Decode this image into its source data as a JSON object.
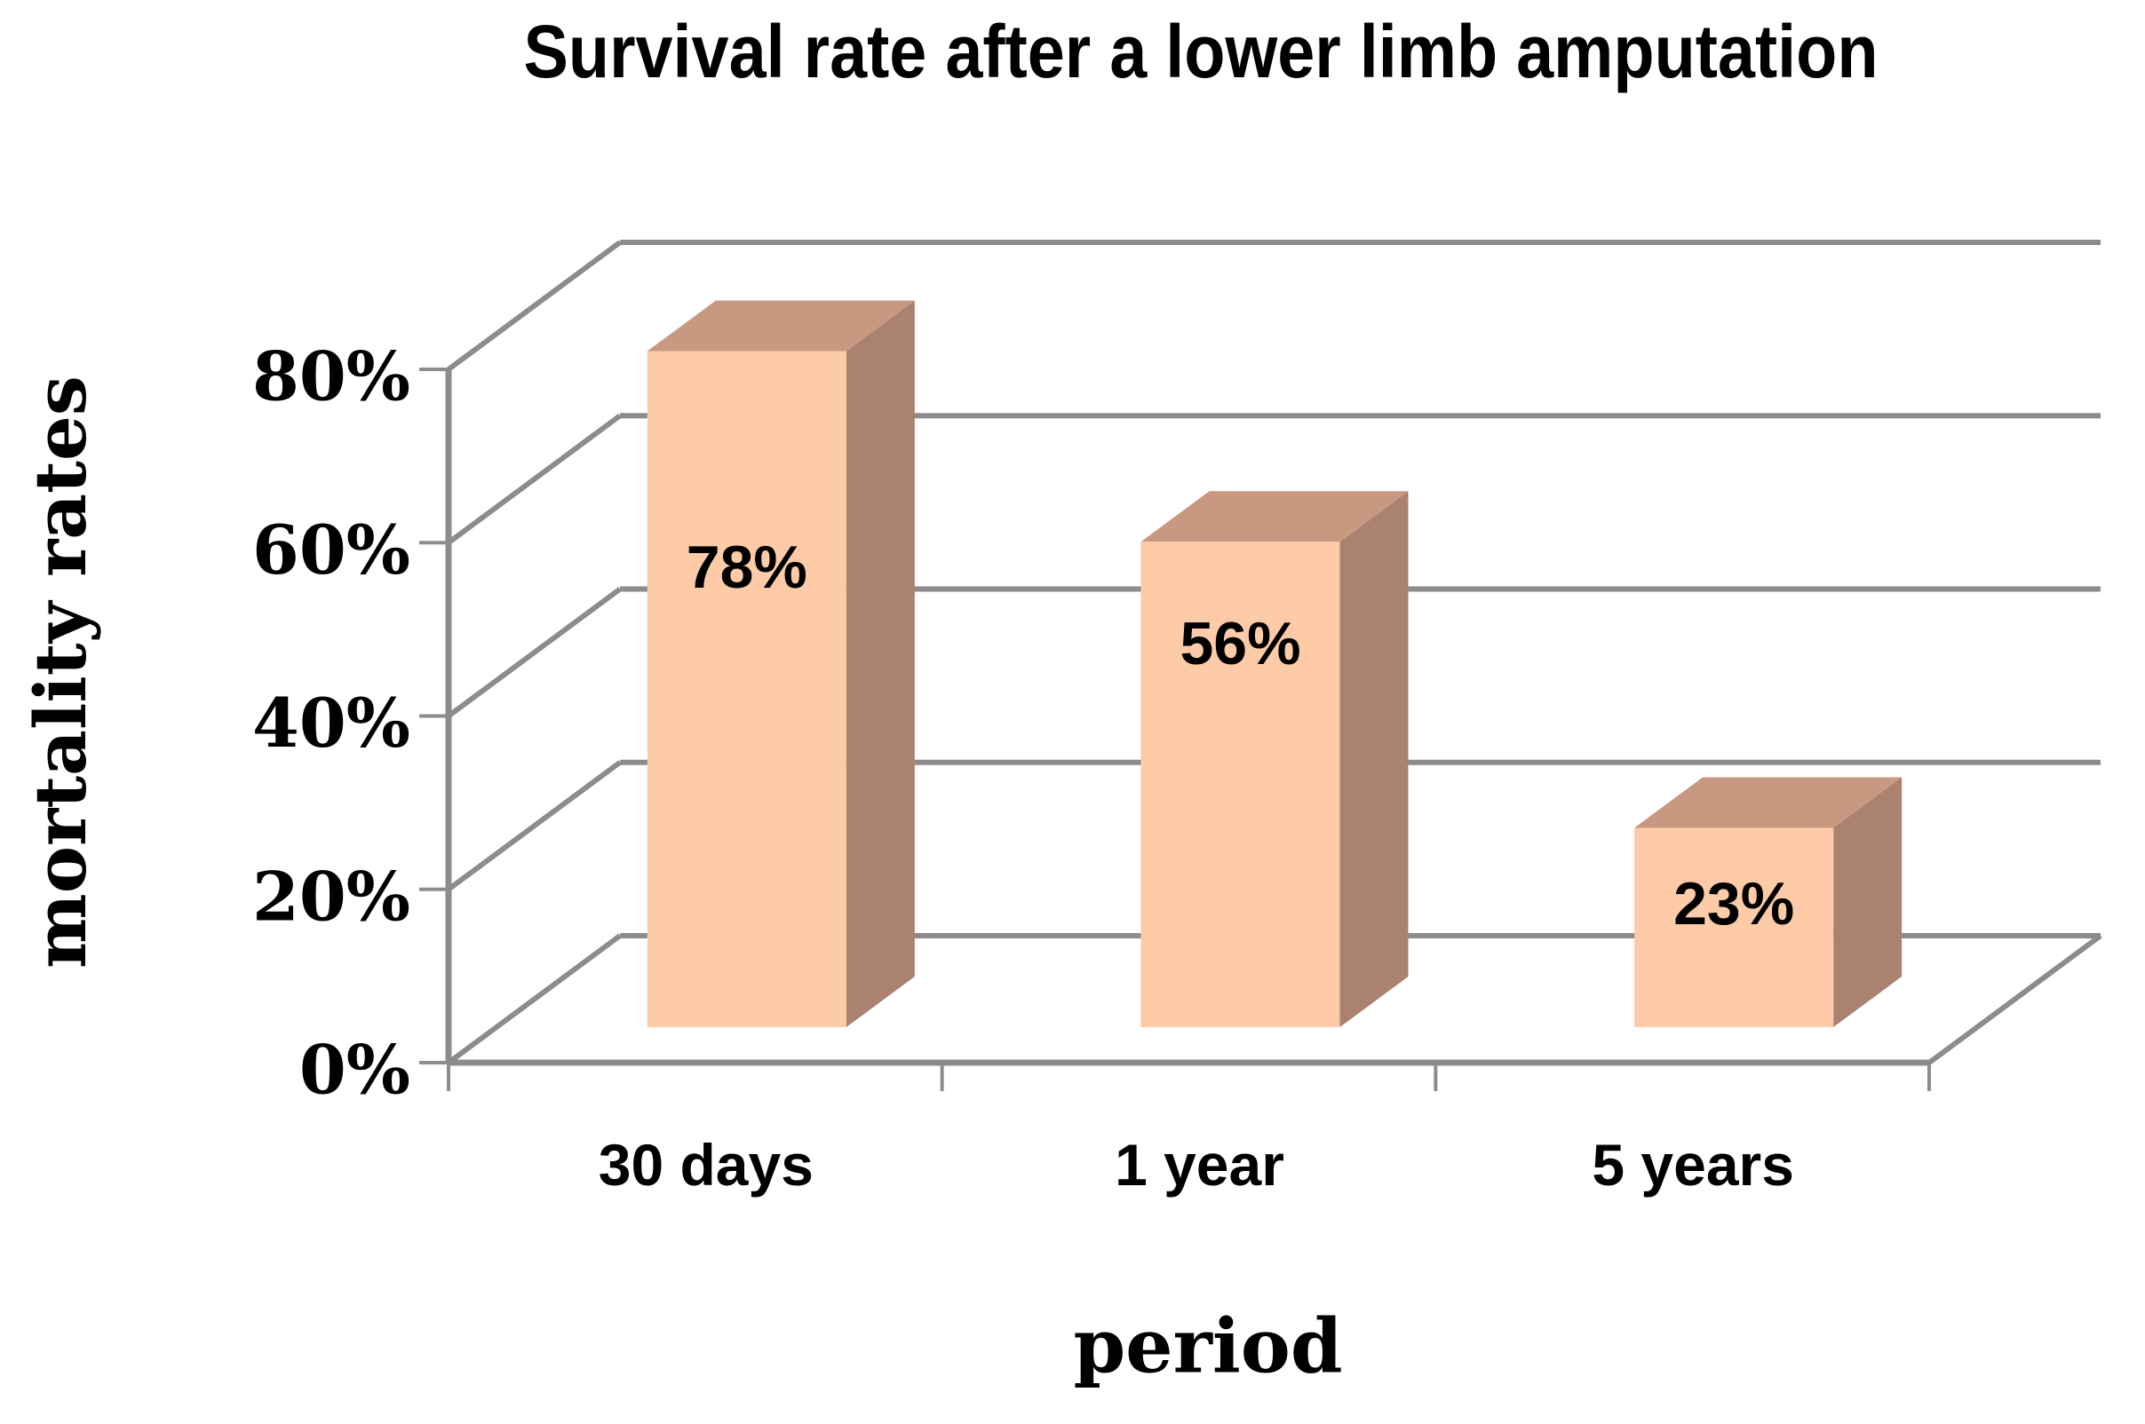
{
  "chart_data": {
    "type": "bar",
    "variant": "3d-column",
    "title": "Survival rate after a lower limb amputation",
    "xlabel": "period",
    "ylabel": "mortality rates",
    "categories": [
      "30 days",
      "1 year",
      "5 years"
    ],
    "values": [
      78,
      56,
      23
    ],
    "data_labels": [
      "78%",
      "56%",
      "23%"
    ],
    "y_ticks": [
      "0%",
      "20%",
      "40%",
      "60%",
      "80%"
    ],
    "y_tick_values": [
      0,
      20,
      40,
      60,
      80
    ],
    "ylim": [
      0,
      80
    ],
    "grid": true,
    "legend": false,
    "colors": {
      "bar_front": "#FDCBA7",
      "bar_top": "#C99881",
      "bar_side": "#AB8170",
      "gridline": "#8C8C8C",
      "text": "#000000",
      "background": "#FFFFFF"
    }
  }
}
